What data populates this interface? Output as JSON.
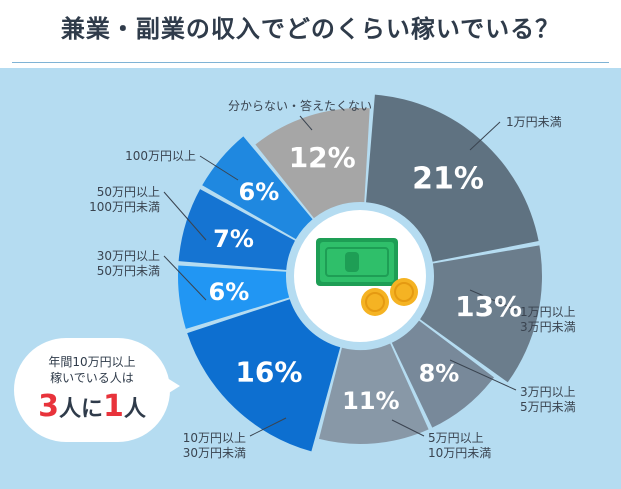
{
  "title": "兼業・副業の収入でどのくらい稼いでいる？",
  "callout": {
    "line1": "年間10万円以上",
    "line2": "稼いでいる人は",
    "num1": "3",
    "mid": "人に",
    "num2": "1",
    "end": "人"
  },
  "colors": {
    "background": "#b5dcf1",
    "grays": [
      "#5f7281",
      "#6b7d8c",
      "#78899a",
      "#8898a7"
    ],
    "blues": [
      "#1f88e0",
      "#1574d2",
      "#2196f3",
      "#0d6fd0"
    ],
    "unknown": "#a6a6a6",
    "accent_red": "#e8333b"
  },
  "icon": "money-with-coins-icon",
  "chart_data": {
    "type": "donut",
    "unit": "%",
    "slices": [
      {
        "category": "1万円未満",
        "value": 21,
        "label": "21%"
      },
      {
        "category": "1万円以上\n3万円未満",
        "value": 13,
        "label": "13%"
      },
      {
        "category": "3万円以上\n5万円未満",
        "value": 8,
        "label": "8%"
      },
      {
        "category": "5万円以上\n10万円未満",
        "value": 11,
        "label": "11%"
      },
      {
        "category": "10万円以上\n30万円未満",
        "value": 16,
        "label": "16%"
      },
      {
        "category": "30万円以上\n50万円未満",
        "value": 6,
        "label": "6%"
      },
      {
        "category": "50万円以上\n100万円未満",
        "value": 7,
        "label": "7%"
      },
      {
        "category": "100万円以上",
        "value": 6,
        "label": "6%"
      },
      {
        "category": "分からない・答えたくない",
        "value": 12,
        "label": "12%"
      }
    ]
  }
}
